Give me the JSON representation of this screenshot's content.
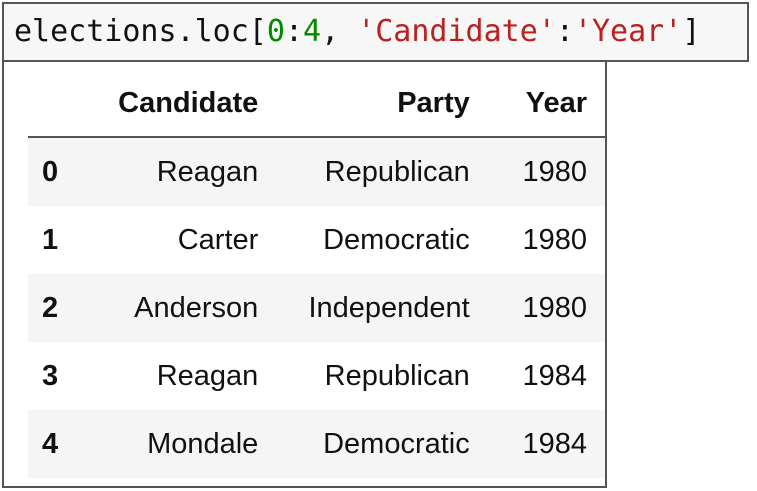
{
  "code": {
    "prefix": "elections.loc[",
    "start": "0",
    "sep": ":",
    "end": "4",
    "comma": ", ",
    "col_start": "'Candidate'",
    "colon": ":",
    "col_end": "'Year'",
    "suffix": "]",
    "colors": {
      "number": "#008800",
      "string": "#ba2121"
    }
  },
  "table": {
    "columns": [
      "",
      "Candidate",
      "Party",
      "Year"
    ],
    "rows": [
      {
        "index": "0",
        "candidate": "Reagan",
        "party": "Republican",
        "year": "1980"
      },
      {
        "index": "1",
        "candidate": "Carter",
        "party": "Democratic",
        "year": "1980"
      },
      {
        "index": "2",
        "candidate": "Anderson",
        "party": "Independent",
        "year": "1980"
      },
      {
        "index": "3",
        "candidate": "Reagan",
        "party": "Republican",
        "year": "1984"
      },
      {
        "index": "4",
        "candidate": "Mondale",
        "party": "Democratic",
        "year": "1984"
      }
    ]
  }
}
